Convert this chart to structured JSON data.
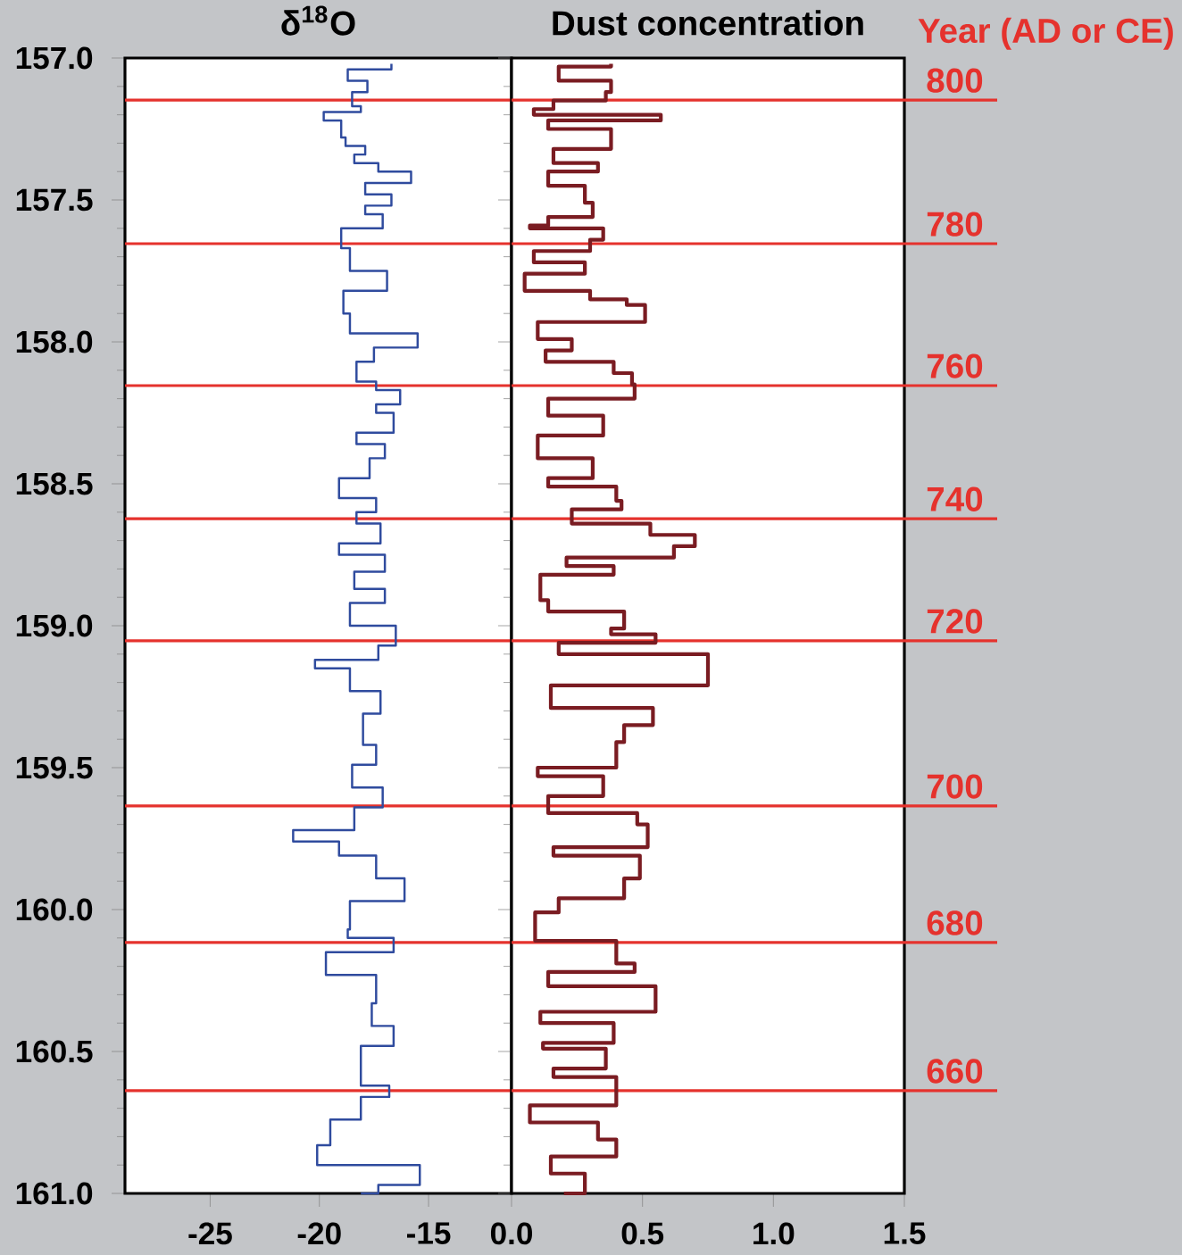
{
  "chart_data": [
    {
      "type": "step",
      "title": "δ$^{18}$O",
      "series": [
        {
          "color": "#2f4b9e",
          "x": [
            -16.7,
            -18.7,
            -17.8,
            -18.5,
            -18.1,
            -19.8,
            -19.0,
            -18.8,
            -17.9,
            -18.4,
            -17.3,
            -15.8,
            -17.9,
            -16.7,
            -17.9,
            -17.1,
            -19.0,
            -18.6,
            -16.9,
            -18.9,
            -18.6,
            -15.5,
            -17.5,
            -18.3,
            -17.4,
            -16.3,
            -17.4,
            -16.6,
            -18.3,
            -17.0,
            -17.7,
            -19.1,
            -17.4,
            -18.3,
            -17.2,
            -19.1,
            -17.0,
            -18.4,
            -17.0,
            -18.6,
            -16.5,
            -17.3,
            -20.2,
            -18.6,
            -17.2,
            -18.0,
            -17.4,
            -18.5,
            -17.1,
            -18.4,
            -21.2,
            -19.1,
            -17.4,
            -16.1,
            -18.6,
            -18.7,
            -16.6,
            -19.7,
            -17.4,
            -17.6,
            -16.6,
            -18.1,
            -16.8,
            -18.1,
            -19.5,
            -20.1,
            -15.4,
            -17.3,
            -18.1
          ],
          "values": [
            157.02,
            157.04,
            157.08,
            157.12,
            157.17,
            157.19,
            157.22,
            157.28,
            157.31,
            157.34,
            157.37,
            157.4,
            157.44,
            157.48,
            157.52,
            157.55,
            157.6,
            157.67,
            157.75,
            157.82,
            157.9,
            157.97,
            158.02,
            158.07,
            158.14,
            158.17,
            158.22,
            158.25,
            158.32,
            158.36,
            158.41,
            158.48,
            158.55,
            158.6,
            158.64,
            158.71,
            158.75,
            158.81,
            158.87,
            158.92,
            159.0,
            159.07,
            159.12,
            159.15,
            159.23,
            159.31,
            159.42,
            159.49,
            159.57,
            159.64,
            159.72,
            159.76,
            159.81,
            159.89,
            159.97,
            160.07,
            160.1,
            160.15,
            160.23,
            160.33,
            160.41,
            160.48,
            160.62,
            160.66,
            160.74,
            160.83,
            160.9,
            160.97,
            161.0
          ]
        }
      ],
      "xlim": [
        -28.9,
        -11.2
      ],
      "xticks": [
        -25,
        -20,
        -15
      ],
      "ylim": [
        161,
        157
      ],
      "yticks": [
        {
          "value": 157,
          "label": "157.0"
        },
        {
          "value": 157.5,
          "label": "157.5"
        },
        {
          "value": 158,
          "label": "158.0"
        },
        {
          "value": 158.5,
          "label": "158.5"
        },
        {
          "value": 159,
          "label": "159.0"
        },
        {
          "value": 159.5,
          "label": "159.5"
        },
        {
          "value": 160,
          "label": "160.0"
        },
        {
          "value": 160.5,
          "label": "160.5"
        },
        {
          "value": 161,
          "label": "161.0"
        }
      ],
      "ref_lines": [
        {
          "axis": "y",
          "value": 157.148,
          "color": "#e5322d"
        },
        {
          "axis": "y",
          "value": 157.654,
          "color": "#e5322d"
        },
        {
          "axis": "y",
          "value": 158.154,
          "color": "#e5322d"
        },
        {
          "axis": "y",
          "value": 158.623,
          "color": "#e5322d"
        },
        {
          "axis": "y",
          "value": 159.053,
          "color": "#e5322d"
        },
        {
          "axis": "y",
          "value": 159.635,
          "color": "#e5322d"
        },
        {
          "axis": "y",
          "value": 160.116,
          "color": "#e5322d"
        },
        {
          "axis": "y",
          "value": 160.638,
          "color": "#e5322d"
        }
      ]
    },
    {
      "type": "step",
      "title": "Dust concentration",
      "series": [
        {
          "color": "#7a1c22",
          "x": [
            0.38,
            0.18,
            0.38,
            0.36,
            0.16,
            0.085,
            0.57,
            0.14,
            0.38,
            0.16,
            0.33,
            0.14,
            0.28,
            0.31,
            0.14,
            0.07,
            0.35,
            0.3,
            0.085,
            0.28,
            0.05,
            0.3,
            0.44,
            0.51,
            0.1,
            0.23,
            0.13,
            0.39,
            0.46,
            0.47,
            0.14,
            0.35,
            0.1,
            0.31,
            0.14,
            0.4,
            0.42,
            0.23,
            0.53,
            0.7,
            0.62,
            0.21,
            0.39,
            0.11,
            0.14,
            0.43,
            0.38,
            0.55,
            0.18,
            0.75,
            0.15,
            0.54,
            0.43,
            0.4,
            0.1,
            0.35,
            0.14,
            0.48,
            0.52,
            0.16,
            0.49,
            0.43,
            0.18,
            0.09,
            0.4,
            0.47,
            0.14,
            0.55,
            0.11,
            0.39,
            0.12,
            0.36,
            0.16,
            0.4,
            0.07,
            0.33,
            0.4,
            0.15,
            0.28,
            0.2
          ],
          "values": [
            157.02,
            157.03,
            157.08,
            157.12,
            157.15,
            157.18,
            157.2,
            157.22,
            157.25,
            157.32,
            157.37,
            157.4,
            157.45,
            157.51,
            157.56,
            157.59,
            157.6,
            157.64,
            157.68,
            157.72,
            157.76,
            157.82,
            157.85,
            157.87,
            157.93,
            157.99,
            158.03,
            158.07,
            158.11,
            158.15,
            158.2,
            158.26,
            158.33,
            158.41,
            158.48,
            158.51,
            158.56,
            158.59,
            158.64,
            158.68,
            158.72,
            158.76,
            158.79,
            158.82,
            158.91,
            158.95,
            159.01,
            159.03,
            159.06,
            159.1,
            159.21,
            159.29,
            159.35,
            159.41,
            159.5,
            159.53,
            159.6,
            159.66,
            159.7,
            159.78,
            159.81,
            159.89,
            159.96,
            160.01,
            160.11,
            160.19,
            160.22,
            160.27,
            160.36,
            160.4,
            160.47,
            160.49,
            160.56,
            160.59,
            160.69,
            160.75,
            160.81,
            160.87,
            160.93,
            161.0
          ]
        }
      ],
      "xlim": [
        0,
        1.5
      ],
      "xticks": [
        {
          "value": 0,
          "label": "0.0"
        },
        0.5,
        {
          "value": 1,
          "label": "1.0"
        },
        1.5
      ],
      "ylim": [
        161,
        157
      ],
      "yticks": [
        157,
        157.5,
        158,
        158.5,
        159,
        159.5,
        160,
        160.5,
        161
      ],
      "tick_labels": "x",
      "annotations": [
        "800",
        "780",
        "760",
        "740",
        "720",
        "700",
        "680",
        "660",
        "Year (AD or CE)"
      ],
      "ref_lines": [
        {
          "axis": "y",
          "value": 157.148,
          "color": "#e5322d"
        },
        {
          "axis": "y",
          "value": 157.654,
          "color": "#e5322d"
        },
        {
          "axis": "y",
          "value": 158.154,
          "color": "#e5322d"
        },
        {
          "axis": "y",
          "value": 158.623,
          "color": "#e5322d"
        },
        {
          "axis": "y",
          "value": 159.053,
          "color": "#e5322d"
        },
        {
          "axis": "y",
          "value": 159.635,
          "color": "#e5322d"
        },
        {
          "axis": "y",
          "value": 160.116,
          "color": "#e5322d"
        },
        {
          "axis": "y",
          "value": 160.638,
          "color": "#e5322d"
        }
      ]
    }
  ]
}
